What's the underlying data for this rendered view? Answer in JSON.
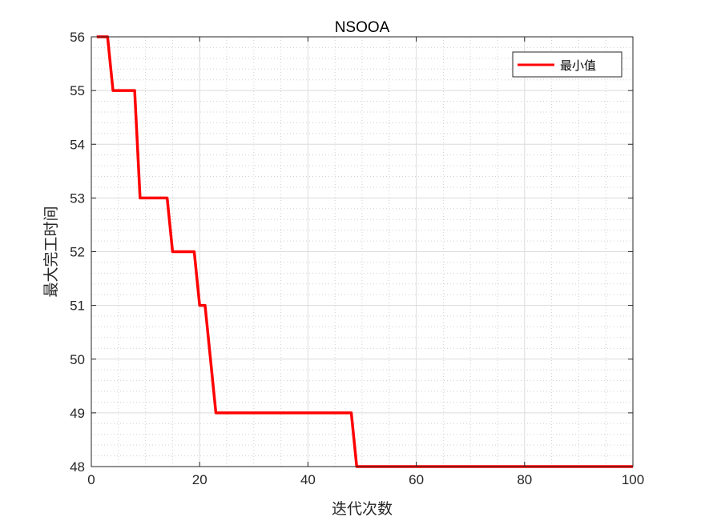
{
  "chart_data": {
    "type": "line",
    "title": "NSOOA",
    "xlabel": "迭代次数",
    "ylabel": "最大完工时间",
    "xlim": [
      0,
      100
    ],
    "ylim": [
      48,
      56
    ],
    "xticks": [
      "0",
      "20",
      "40",
      "60",
      "80",
      "100"
    ],
    "yticks": [
      "48",
      "49",
      "50",
      "51",
      "52",
      "53",
      "54",
      "55",
      "56"
    ],
    "grid": true,
    "minor_grid": true,
    "legend_position": "top-right",
    "series": [
      {
        "name": "最小值",
        "color": "#ff0000",
        "x": [
          1,
          2,
          3,
          4,
          5,
          6,
          7,
          8,
          9,
          10,
          11,
          12,
          13,
          14,
          15,
          16,
          17,
          18,
          19,
          20,
          21,
          22,
          23,
          24,
          25,
          26,
          27,
          28,
          29,
          30,
          31,
          32,
          33,
          34,
          35,
          36,
          37,
          38,
          39,
          40,
          41,
          42,
          43,
          44,
          45,
          46,
          47,
          48,
          49,
          50,
          51,
          52,
          53,
          54,
          55,
          56,
          57,
          58,
          59,
          60,
          61,
          62,
          63,
          64,
          65,
          66,
          67,
          68,
          69,
          70,
          71,
          72,
          73,
          74,
          75,
          76,
          77,
          78,
          79,
          80,
          81,
          82,
          83,
          84,
          85,
          86,
          87,
          88,
          89,
          90,
          91,
          92,
          93,
          94,
          95,
          96,
          97,
          98,
          99,
          100
        ],
        "y": [
          56,
          56,
          56,
          55,
          55,
          55,
          55,
          55,
          53,
          53,
          53,
          53,
          53,
          53,
          52,
          52,
          52,
          52,
          52,
          51,
          51,
          50,
          49,
          49,
          49,
          49,
          49,
          49,
          49,
          49,
          49,
          49,
          49,
          49,
          49,
          49,
          49,
          49,
          49,
          49,
          49,
          49,
          49,
          49,
          49,
          49,
          49,
          49,
          48,
          48,
          48,
          48,
          48,
          48,
          48,
          48,
          48,
          48,
          48,
          48,
          48,
          48,
          48,
          48,
          48,
          48,
          48,
          48,
          48,
          48,
          48,
          48,
          48,
          48,
          48,
          48,
          48,
          48,
          48,
          48,
          48,
          48,
          48,
          48,
          48,
          48,
          48,
          48,
          48,
          48,
          48,
          48,
          48,
          48,
          48,
          48,
          48,
          48,
          48,
          48
        ]
      }
    ]
  }
}
